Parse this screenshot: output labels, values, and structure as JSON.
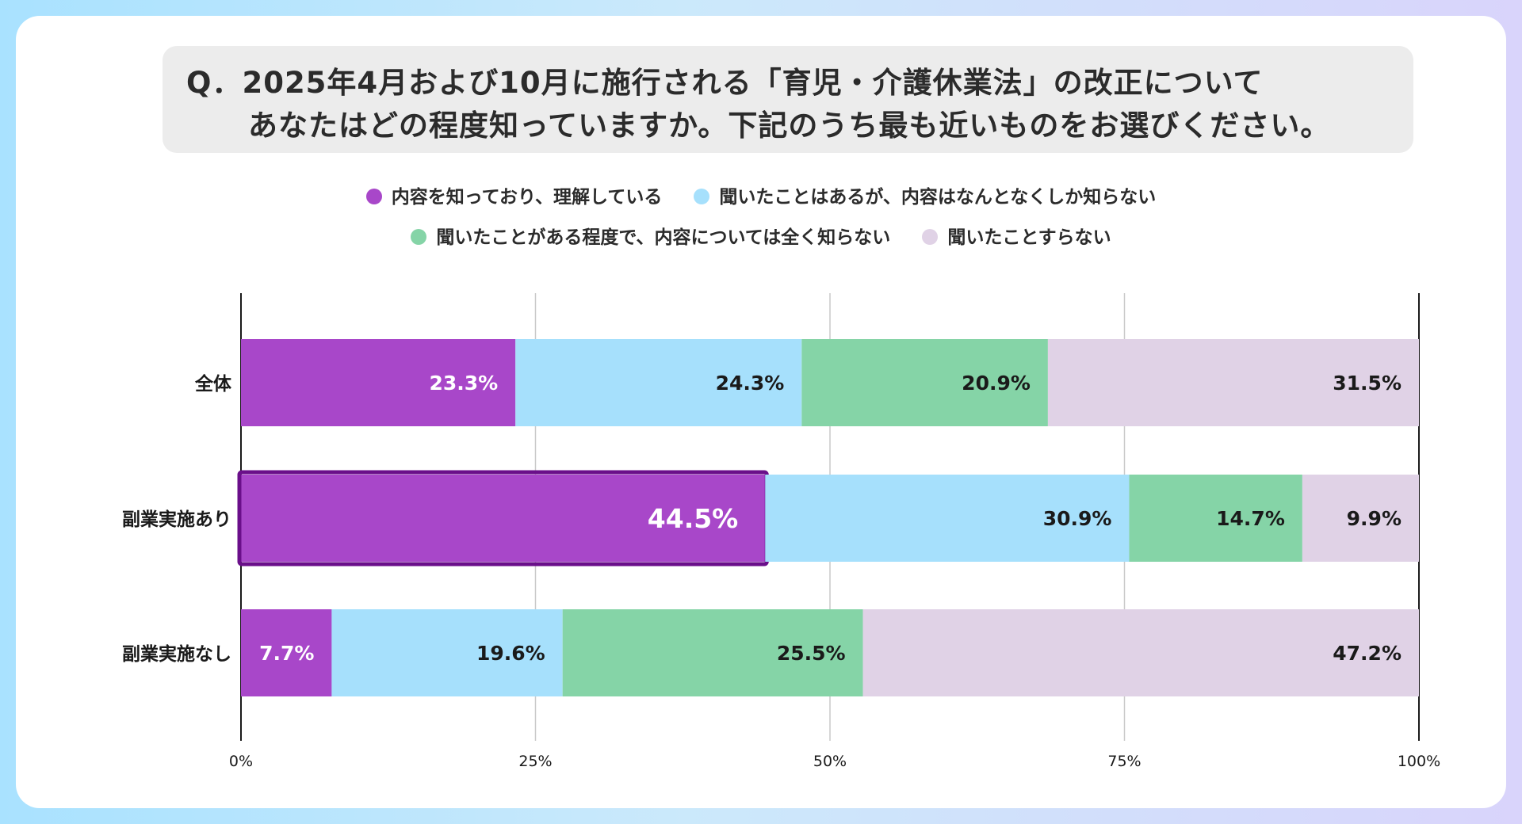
{
  "question": {
    "line1": "Q．2025年4月および10月に施行される「育児・介護休業法」の改正について",
    "line2": "あなたはどの程度知っていますか。下記のうち最も近いものをお選びください。"
  },
  "chart_data": {
    "type": "bar",
    "orientation": "horizontal",
    "stacked": true,
    "categories": [
      "全体",
      "副業実施あり",
      "副業実施なし"
    ],
    "series": [
      {
        "name": "内容を知っており、理解している",
        "color": "#a847c9",
        "label_color": "#ffffff",
        "values": [
          23.3,
          44.5,
          7.7
        ],
        "labels": [
          "23.3%",
          "44.5%",
          "7.7%"
        ]
      },
      {
        "name": "聞いたことはあるが、内容はなんとなくしか知らない",
        "color": "#a6e0fc",
        "label_color": "#1a1a1a",
        "values": [
          24.3,
          30.9,
          19.6
        ],
        "labels": [
          "24.3%",
          "30.9%",
          "19.6%"
        ]
      },
      {
        "name": "聞いたことがある程度で、内容については全く知らない",
        "color": "#85d4a7",
        "label_color": "#1a1a1a",
        "values": [
          20.9,
          14.7,
          25.5
        ],
        "labels": [
          "20.9%",
          "14.7%",
          "25.5%"
        ]
      },
      {
        "name": "聞いたことすらない",
        "color": "#e0d2e6",
        "label_color": "#1a1a1a",
        "values": [
          31.5,
          9.9,
          47.2
        ],
        "labels": [
          "31.5%",
          "9.9%",
          "47.2%"
        ]
      }
    ],
    "xlim": [
      0,
      100
    ],
    "xticks": [
      0,
      25,
      50,
      75,
      100
    ],
    "xtick_labels": [
      "0%",
      "25%",
      "50%",
      "75%",
      "100%"
    ],
    "grid": true,
    "legend_position": "top",
    "highlight": {
      "category": "副業実施あり",
      "series": "内容を知っており、理解している",
      "color": "#6a0f8a"
    }
  }
}
